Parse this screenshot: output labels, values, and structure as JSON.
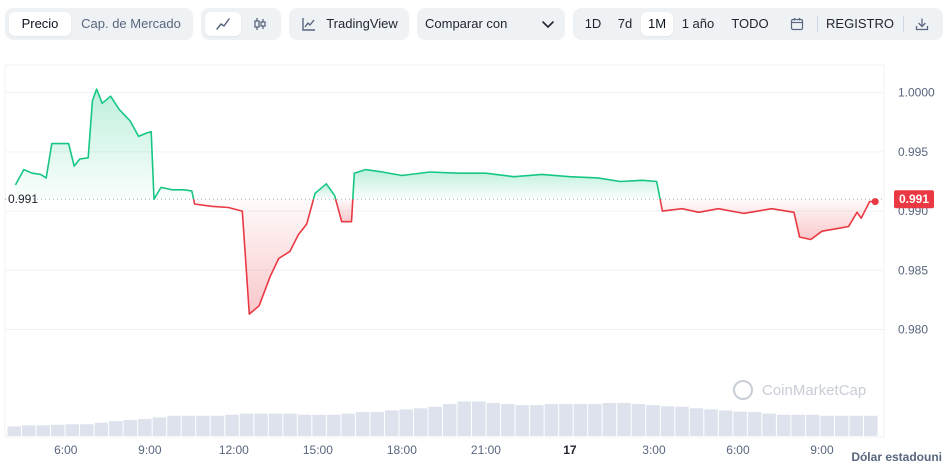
{
  "toolbar": {
    "metric_tabs": [
      {
        "label": "Precio",
        "active": true
      },
      {
        "label": "Cap. de Mercado",
        "active": false
      }
    ],
    "chart_style_icons": [
      "line-chart-icon",
      "candlestick-icon"
    ],
    "tradingview_label": "TradingView",
    "compare_label": "Comparar con",
    "ranges": [
      {
        "label": "1D",
        "active": false
      },
      {
        "label": "7d",
        "active": false
      },
      {
        "label": "1M",
        "active": true
      },
      {
        "label": "1 año",
        "active": false
      },
      {
        "label": "TODO",
        "active": false
      }
    ],
    "log_label": "REGISTRO",
    "icons": [
      "calendar-icon",
      "download-icon"
    ]
  },
  "watermark": "CoinMarketCap",
  "unit_label": "Dólar estadouni",
  "colors": {
    "up": "#16c784",
    "down": "#ea3943",
    "volume": "#cfd6e4",
    "grid": "#eff2f5",
    "axis_text": "#58667e"
  },
  "chart_data": {
    "type": "line",
    "title": "",
    "reference_value": 0.991,
    "reference_label": "0.991",
    "current_value_label": "0.991",
    "y_ticks": [
      "1.0000",
      "0.995",
      "0.990",
      "0.985",
      "0.980"
    ],
    "ylim": [
      0.9765,
      1.0025
    ],
    "x_ticks": [
      "6:00",
      "9:00",
      "12:00",
      "15:00",
      "18:00",
      "21:00",
      "17",
      "3:00",
      "6:00",
      "9:00"
    ],
    "x_hour_range": [
      3.9,
      35.0
    ],
    "grid": "horizontal",
    "series": [
      {
        "points": [
          [
            4.2,
            0.9922
          ],
          [
            4.5,
            0.9935
          ],
          [
            4.8,
            0.9932
          ],
          [
            5.1,
            0.9931
          ],
          [
            5.3,
            0.9928
          ],
          [
            5.5,
            0.9957
          ],
          [
            6.1,
            0.9957
          ],
          [
            6.3,
            0.9938
          ],
          [
            6.5,
            0.9944
          ],
          [
            6.8,
            0.9945
          ],
          [
            6.95,
            0.9993
          ],
          [
            7.1,
            1.0003
          ],
          [
            7.3,
            0.9991
          ],
          [
            7.6,
            0.9997
          ],
          [
            7.9,
            0.9986
          ],
          [
            8.3,
            0.9976
          ],
          [
            8.6,
            0.9963
          ],
          [
            8.9,
            0.9966
          ],
          [
            9.05,
            0.9967
          ],
          [
            9.15,
            0.991
          ],
          [
            9.4,
            0.992
          ],
          [
            9.8,
            0.9918
          ],
          [
            10.2,
            0.9918
          ],
          [
            10.5,
            0.9917
          ],
          [
            10.6,
            0.9906
          ],
          [
            11.2,
            0.9904
          ],
          [
            11.8,
            0.9903
          ],
          [
            12.3,
            0.99
          ],
          [
            12.55,
            0.9813
          ],
          [
            12.9,
            0.982
          ],
          [
            13.3,
            0.9845
          ],
          [
            13.6,
            0.986
          ],
          [
            14.0,
            0.9866
          ],
          [
            14.3,
            0.988
          ],
          [
            14.6,
            0.9889
          ],
          [
            14.9,
            0.9915
          ],
          [
            15.3,
            0.9923
          ],
          [
            15.6,
            0.9913
          ],
          [
            15.85,
            0.9891
          ],
          [
            16.2,
            0.9891
          ],
          [
            16.3,
            0.9932
          ],
          [
            16.7,
            0.9935
          ],
          [
            17.3,
            0.9933
          ],
          [
            18.0,
            0.993
          ],
          [
            19.0,
            0.9933
          ],
          [
            20.0,
            0.9932
          ],
          [
            21.0,
            0.9932
          ],
          [
            22.0,
            0.9929
          ],
          [
            23.0,
            0.9931
          ],
          [
            24.0,
            0.9929
          ],
          [
            25.0,
            0.9928
          ],
          [
            25.8,
            0.9925
          ],
          [
            26.6,
            0.9926
          ],
          [
            27.1,
            0.9925
          ],
          [
            27.3,
            0.99
          ],
          [
            28.0,
            0.9902
          ],
          [
            28.6,
            0.9899
          ],
          [
            29.3,
            0.9902
          ],
          [
            30.2,
            0.9898
          ],
          [
            31.2,
            0.9902
          ],
          [
            32.0,
            0.9899
          ],
          [
            32.2,
            0.9878
          ],
          [
            32.6,
            0.9876
          ],
          [
            33.0,
            0.9883
          ],
          [
            33.5,
            0.9885
          ],
          [
            33.95,
            0.9887
          ],
          [
            34.25,
            0.9899
          ],
          [
            34.4,
            0.9894
          ],
          [
            34.7,
            0.9908
          ],
          [
            34.9,
            0.9908
          ]
        ]
      }
    ],
    "volume_series": [
      0.18,
      0.2,
      0.2,
      0.21,
      0.22,
      0.22,
      0.25,
      0.28,
      0.3,
      0.32,
      0.35,
      0.38,
      0.38,
      0.38,
      0.38,
      0.4,
      0.42,
      0.42,
      0.42,
      0.42,
      0.4,
      0.4,
      0.4,
      0.42,
      0.45,
      0.45,
      0.48,
      0.5,
      0.52,
      0.55,
      0.6,
      0.65,
      0.65,
      0.62,
      0.6,
      0.58,
      0.58,
      0.6,
      0.6,
      0.6,
      0.6,
      0.62,
      0.62,
      0.6,
      0.58,
      0.56,
      0.55,
      0.52,
      0.5,
      0.48,
      0.46,
      0.45,
      0.42,
      0.4,
      0.4,
      0.4,
      0.38,
      0.38,
      0.38,
      0.38
    ]
  }
}
